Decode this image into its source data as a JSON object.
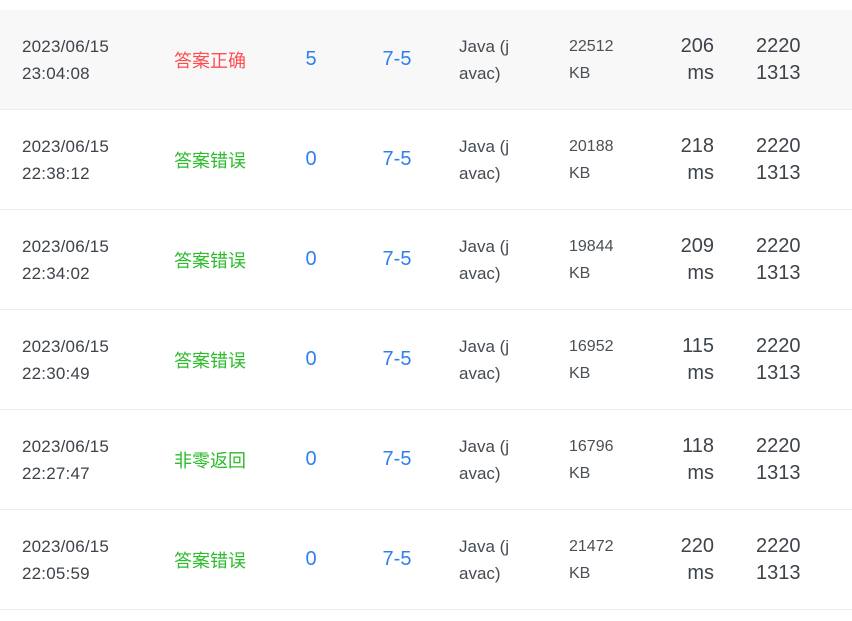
{
  "colors": {
    "status_correct": "#ff4d4f",
    "status_wrong": "#2bbb2b",
    "link_blue": "#2f80ed",
    "row_highlight_bg": "#f8f8f8",
    "divider": "#ececec"
  },
  "table": {
    "rows": [
      {
        "highlighted": true,
        "time": {
          "date": "2023/06/15",
          "clock": "23:04:08"
        },
        "status": {
          "label": "答案正确",
          "type": "correct"
        },
        "score": "5",
        "problem": "7-5",
        "language": {
          "line1": "Java (j",
          "line2": "avac)",
          "full": "Java (javac)"
        },
        "memory": {
          "value": "22512",
          "unit": "KB"
        },
        "runtime": {
          "value": "206",
          "unit": "ms"
        },
        "user": {
          "line1": "2220",
          "line2": "1313",
          "full": "22201313"
        }
      },
      {
        "highlighted": false,
        "time": {
          "date": "2023/06/15",
          "clock": "22:38:12"
        },
        "status": {
          "label": "答案错误",
          "type": "wrong"
        },
        "score": "0",
        "problem": "7-5",
        "language": {
          "line1": "Java (j",
          "line2": "avac)",
          "full": "Java (javac)"
        },
        "memory": {
          "value": "20188",
          "unit": "KB"
        },
        "runtime": {
          "value": "218",
          "unit": "ms"
        },
        "user": {
          "line1": "2220",
          "line2": "1313",
          "full": "22201313"
        }
      },
      {
        "highlighted": false,
        "time": {
          "date": "2023/06/15",
          "clock": "22:34:02"
        },
        "status": {
          "label": "答案错误",
          "type": "wrong"
        },
        "score": "0",
        "problem": "7-5",
        "language": {
          "line1": "Java (j",
          "line2": "avac)",
          "full": "Java (javac)"
        },
        "memory": {
          "value": "19844",
          "unit": "KB"
        },
        "runtime": {
          "value": "209",
          "unit": "ms"
        },
        "user": {
          "line1": "2220",
          "line2": "1313",
          "full": "22201313"
        }
      },
      {
        "highlighted": false,
        "time": {
          "date": "2023/06/15",
          "clock": "22:30:49"
        },
        "status": {
          "label": "答案错误",
          "type": "wrong"
        },
        "score": "0",
        "problem": "7-5",
        "language": {
          "line1": "Java (j",
          "line2": "avac)",
          "full": "Java (javac)"
        },
        "memory": {
          "value": "16952",
          "unit": "KB"
        },
        "runtime": {
          "value": "115",
          "unit": "ms"
        },
        "user": {
          "line1": "2220",
          "line2": "1313",
          "full": "22201313"
        }
      },
      {
        "highlighted": false,
        "time": {
          "date": "2023/06/15",
          "clock": "22:27:47"
        },
        "status": {
          "label": "非零返回",
          "type": "nonzero"
        },
        "score": "0",
        "problem": "7-5",
        "language": {
          "line1": "Java (j",
          "line2": "avac)",
          "full": "Java (javac)"
        },
        "memory": {
          "value": "16796",
          "unit": "KB"
        },
        "runtime": {
          "value": "118",
          "unit": "ms"
        },
        "user": {
          "line1": "2220",
          "line2": "1313",
          "full": "22201313"
        }
      },
      {
        "highlighted": false,
        "time": {
          "date": "2023/06/15",
          "clock": "22:05:59"
        },
        "status": {
          "label": "答案错误",
          "type": "wrong"
        },
        "score": "0",
        "problem": "7-5",
        "language": {
          "line1": "Java (j",
          "line2": "avac)",
          "full": "Java (javac)"
        },
        "memory": {
          "value": "21472",
          "unit": "KB"
        },
        "runtime": {
          "value": "220",
          "unit": "ms"
        },
        "user": {
          "line1": "2220",
          "line2": "1313",
          "full": "22201313"
        }
      }
    ]
  }
}
